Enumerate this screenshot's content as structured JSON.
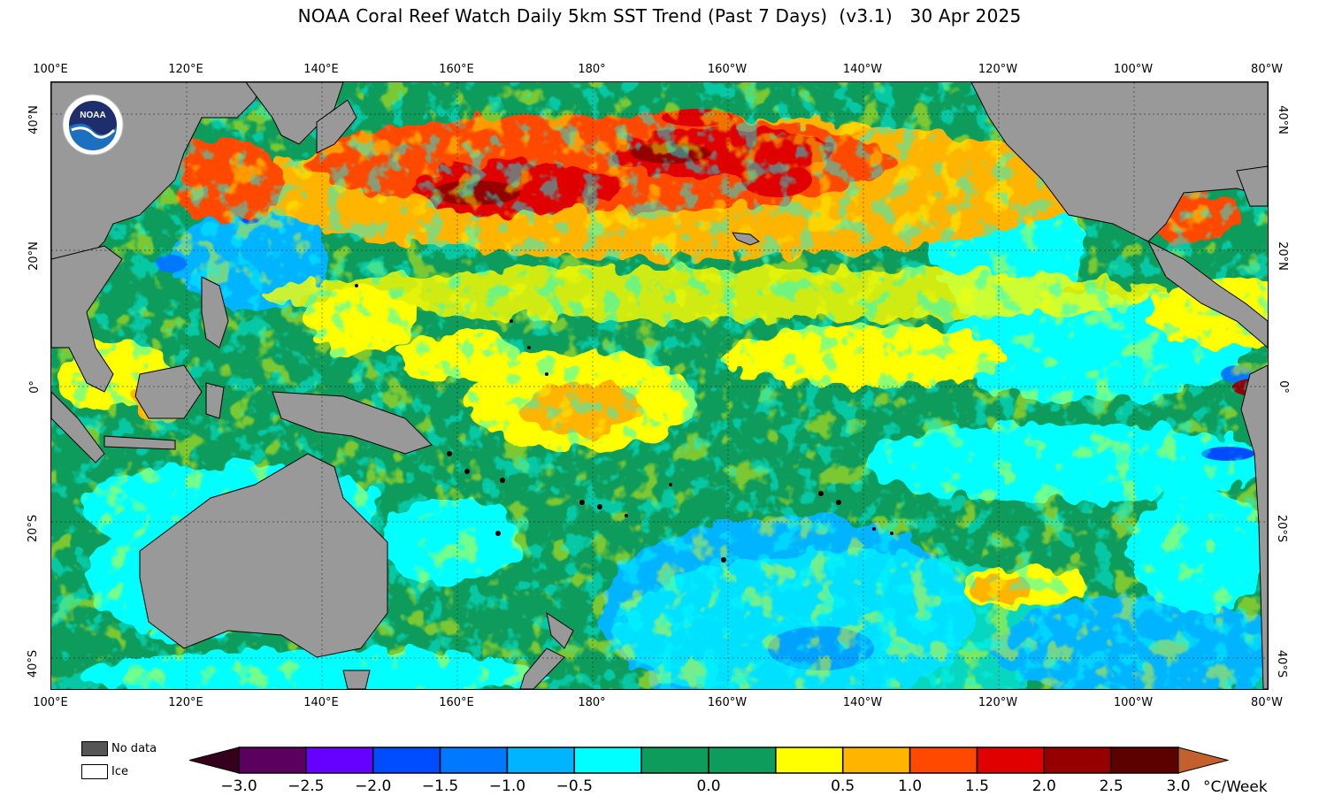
{
  "title": "NOAA Coral Reef Watch Daily 5km SST Trend (Past 7 Days)  (v3.1)   30 Apr 2025",
  "logo": {
    "text": "NOAA",
    "icon": "noaa-logo"
  },
  "map": {
    "lon_labels": [
      "100°E",
      "120°E",
      "140°E",
      "160°E",
      "180°",
      "160°W",
      "140°W",
      "120°W",
      "100°W",
      "80°W"
    ],
    "lat_labels": [
      "40°N",
      "20°N",
      "0°",
      "20°S",
      "40°S"
    ],
    "colors": {
      "land": "#999999",
      "land_outline": "#000000",
      "ocean_green": "#0e9c5c",
      "cyan": "#00ffff",
      "sky": "#00b4ff",
      "blue": "#0078ff",
      "deep_blue": "#004cff",
      "yellow": "#ffff00",
      "orange": "#ffb400",
      "red_orange": "#ff4800",
      "red": "#e00000",
      "dark_red": "#960000",
      "darkest_red": "#5c0000"
    }
  },
  "legend": {
    "no_data_label": "No data",
    "no_data_color": "#555555",
    "ice_label": "Ice",
    "ice_color": "#ffffff"
  },
  "colorbar": {
    "tick_labels": [
      "−3.0",
      "−2.5",
      "−2.0",
      "−1.5",
      "−1.0",
      "−0.5",
      "0.0",
      "0.5",
      "1.0",
      "1.5",
      "2.0",
      "2.5",
      "3.0"
    ],
    "units": "°C/Week",
    "under_color": "#35001c",
    "over_color": "#c4602d",
    "segments": [
      {
        "color": "#5c0060"
      },
      {
        "color": "#6600ff"
      },
      {
        "color": "#004cff"
      },
      {
        "color": "#0078ff"
      },
      {
        "color": "#00b4ff"
      },
      {
        "color": "#00ffff"
      },
      {
        "color": "#0e9c5c"
      },
      {
        "color": "#0e9c5c"
      },
      {
        "color": "#ffff00"
      },
      {
        "color": "#ffb400"
      },
      {
        "color": "#ff4800"
      },
      {
        "color": "#e00000"
      },
      {
        "color": "#960000"
      },
      {
        "color": "#5c0000"
      }
    ]
  }
}
